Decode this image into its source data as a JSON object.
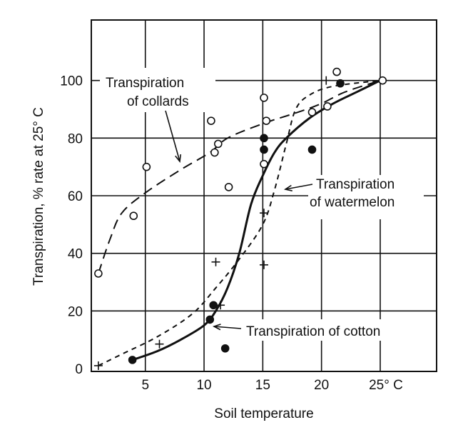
{
  "chart_data": {
    "type": "scatter",
    "title": "",
    "xlabel": "Soil temperature",
    "ylabel": "Transpiration, % rate at 25° C",
    "xlim": [
      0.4,
      29.8
    ],
    "ylim": [
      -1,
      121
    ],
    "grid": true,
    "x_ticks": [
      {
        "v": 5,
        "label": "5"
      },
      {
        "v": 10,
        "label": "10"
      },
      {
        "v": 15,
        "label": "15"
      },
      {
        "v": 20,
        "label": "20"
      },
      {
        "v": 25,
        "label": "25° C"
      }
    ],
    "y_ticks": [
      {
        "v": 0,
        "label": "0"
      },
      {
        "v": 20,
        "label": "20"
      },
      {
        "v": 40,
        "label": "40"
      },
      {
        "v": 60,
        "label": "60"
      },
      {
        "v": 80,
        "label": "80"
      },
      {
        "v": 100,
        "label": "100"
      }
    ],
    "series": [
      {
        "name": "Transpiration of collards",
        "marker": "open-circle",
        "line": "long-dash",
        "points": [
          [
            1,
            33
          ],
          [
            4,
            53
          ],
          [
            5.1,
            70
          ],
          [
            10.6,
            86
          ],
          [
            10.9,
            75
          ],
          [
            11.2,
            78
          ],
          [
            12.1,
            63
          ],
          [
            15.1,
            94
          ],
          [
            15.1,
            71
          ],
          [
            15.3,
            86
          ],
          [
            19.2,
            89
          ],
          [
            20.5,
            91
          ],
          [
            21.3,
            103
          ],
          [
            25.2,
            100
          ]
        ],
        "curve": [
          [
            1,
            33
          ],
          [
            2,
            45
          ],
          [
            3,
            54
          ],
          [
            5,
            61
          ],
          [
            8,
            69
          ],
          [
            10.5,
            75
          ],
          [
            12,
            80
          ],
          [
            15,
            85
          ],
          [
            18,
            89
          ],
          [
            20,
            92
          ],
          [
            22,
            96
          ],
          [
            25,
            100
          ]
        ]
      },
      {
        "name": "Transpiration of cotton",
        "marker": "filled-circle",
        "line": "solid",
        "points": [
          [
            3.9,
            3
          ],
          [
            10.5,
            17
          ],
          [
            10.8,
            22
          ],
          [
            11.8,
            7
          ],
          [
            15.1,
            80
          ],
          [
            15.1,
            76
          ],
          [
            19.2,
            76
          ],
          [
            21.6,
            99
          ]
        ],
        "curve": [
          [
            3.9,
            3
          ],
          [
            6,
            6
          ],
          [
            8,
            10
          ],
          [
            10,
            15
          ],
          [
            11,
            20
          ],
          [
            12,
            28
          ],
          [
            13,
            40
          ],
          [
            14,
            57
          ],
          [
            15,
            67
          ],
          [
            16,
            75
          ],
          [
            17,
            80
          ],
          [
            19,
            87
          ],
          [
            21,
            92
          ],
          [
            23,
            96
          ],
          [
            25,
            100
          ]
        ]
      },
      {
        "name": "Transpiration of watermelon",
        "marker": "plus",
        "line": "short-dash",
        "points": [
          [
            1,
            1
          ],
          [
            6.2,
            8.5
          ],
          [
            11,
            37
          ],
          [
            11.4,
            22
          ],
          [
            15.1,
            36
          ],
          [
            15.1,
            54
          ],
          [
            20.4,
            100
          ]
        ],
        "curve": [
          [
            1,
            1
          ],
          [
            3,
            5
          ],
          [
            6,
            11
          ],
          [
            9,
            19
          ],
          [
            11,
            28
          ],
          [
            13,
            38
          ],
          [
            15,
            50
          ],
          [
            16,
            62
          ],
          [
            17,
            78
          ],
          [
            17.8,
            90
          ],
          [
            19,
            95
          ],
          [
            21,
            98
          ],
          [
            25,
            100
          ]
        ]
      }
    ],
    "annotations": [
      {
        "line1": "Transpiration",
        "line2": "of collards"
      },
      {
        "line1": "Transpiration",
        "line2": "of watermelon"
      },
      {
        "line1": "Transpiration of cotton"
      }
    ]
  }
}
